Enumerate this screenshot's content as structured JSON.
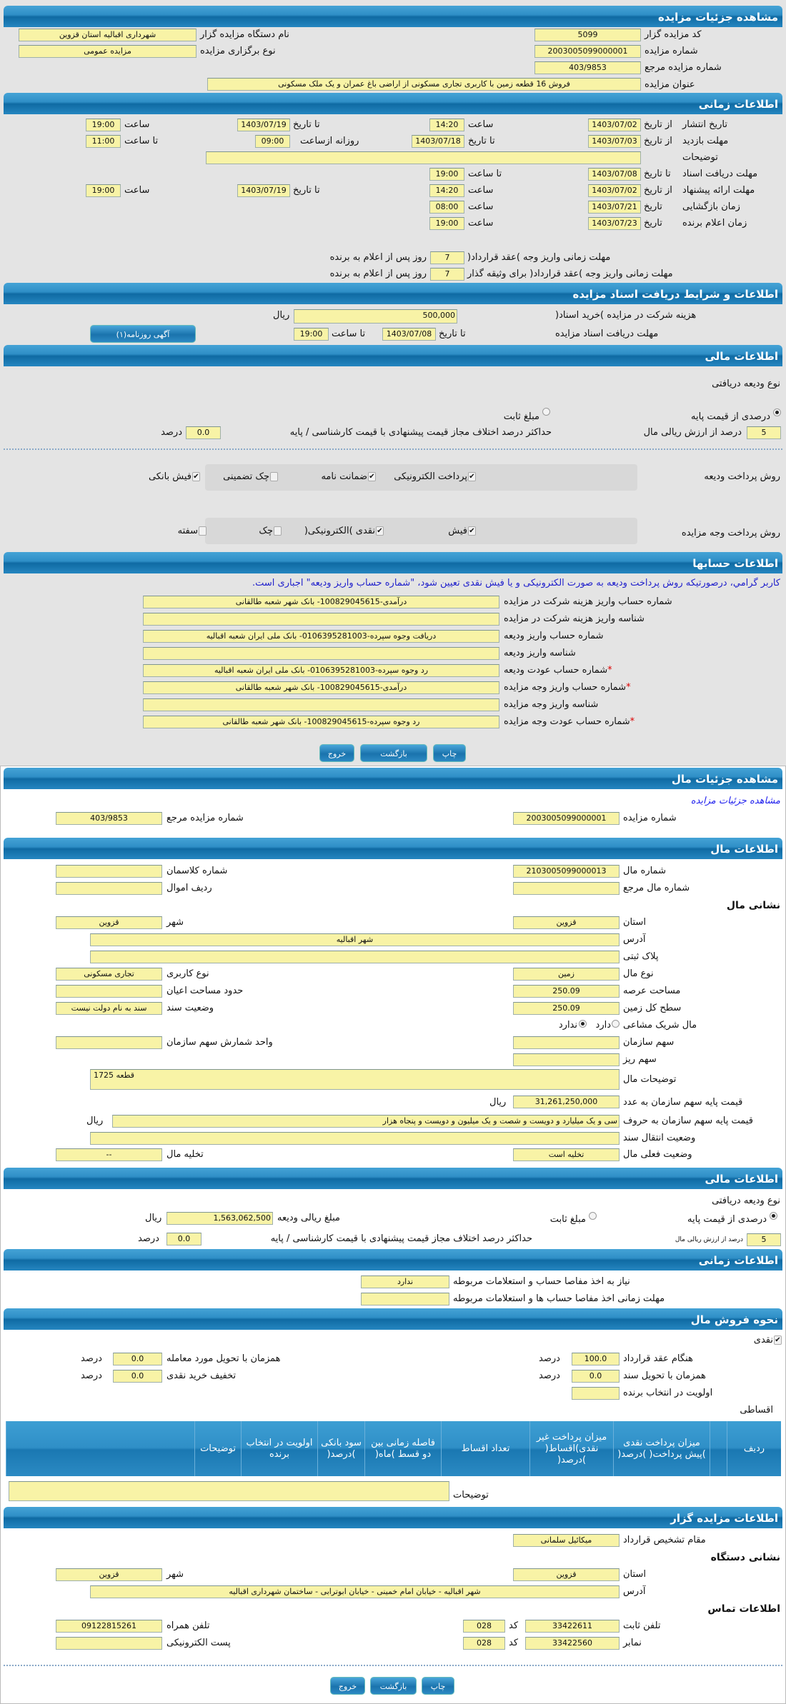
{
  "auction": {
    "title": "مشاهده جزئیات مزایده",
    "code_label": "کد مزایده گزار",
    "code": "5099",
    "org_label": "نام دستگاه مزایده گزار",
    "org": "شهرداری اقبالیه استان قزوین",
    "number_label": "شماره مزایده",
    "number": "2003005099000001",
    "type_label": "نوع برگزاری مزایده",
    "type": "مزایده عمومی",
    "ref_label": "شماره مزایده مرجع",
    "ref": "403/9853",
    "subject_label": "عنوان مزایده",
    "subject": "فروش 16 قطعه زمین با کاربری تجاری مسکونی از اراضی باغ عمران و یک ملک مسکونی"
  },
  "timing": {
    "title": "اطلاعات زمانی",
    "publish_label": "تاریخ انتشار",
    "from_date": "از تاریخ",
    "to_date": "تا تاریخ",
    "date": "تاریخ",
    "hour": "ساعت",
    "to_hour": "تا ساعت",
    "daily_from": "روزانه ازساعت",
    "publish_from": "1403/07/02",
    "publish_from_time": "14:20",
    "publish_to": "1403/07/19",
    "publish_to_time": "19:00",
    "visit_label": "مهلت بازدید",
    "visit_from": "1403/07/03",
    "visit_to": "1403/07/18",
    "visit_daily_from": "09:00",
    "visit_daily_to": "11:00",
    "desc_label": "توضیحات",
    "desc": "",
    "docs_label": "مهلت دریافت اسناد",
    "docs_to": "1403/07/08",
    "docs_to_time": "19:00",
    "offer_label": "مهلت ارائه پیشنهاد",
    "offer_from": "1403/07/02",
    "offer_from_time": "14:20",
    "offer_to": "1403/07/19",
    "offer_to_time": "19:00",
    "opening_label": "زمان بازگشایی",
    "opening_date": "1403/07/21",
    "opening_time": "08:00",
    "winner_label": "زمان اعلام برنده",
    "winner_date": "1403/07/23",
    "winner_time": "19:00",
    "pay_contract_label": "مهلت زمانی واریز وجه )عقد قرارداد(",
    "pay_contract_days": "7",
    "pay_collateral_label": "مهلت زمانی واریز وجه )عقد قرارداد( برای وثیقه گذار",
    "pay_collateral_days": "7",
    "days_suffix": "روز پس از اعلام به برنده"
  },
  "docs": {
    "title": "اطلاعات و شرایط دریافت اسناد مزایده",
    "fee_label": "هزینه شرکت در مزایده )خرید اسناد(",
    "fee": "500,000",
    "rial": "ریال",
    "deadline_label": "مهلت دریافت اسناد مزایده",
    "to_date": "تا تاریخ",
    "deadline_date": "1403/07/08",
    "to_hour": "تا ساعت",
    "deadline_time": "19:00",
    "ad_button": "آگهی روزنامه(۱)"
  },
  "finance": {
    "title": "اطلاعات مالی",
    "deposit_type_label": "نوع ودیعه دریافتی",
    "percent_option": "درصدی از قیمت پایه",
    "fixed_option": "مبلغ ثابت",
    "selected": "percent",
    "percent_value": "5",
    "percent_suffix": "درصد از ارزش ریالی مال",
    "max_diff_label": "حداکثر درصد اختلاف مجاز قیمت پیشنهادی با قیمت کارشناسی / پایه",
    "max_diff": "0.0",
    "percent_unit": "درصد",
    "deposit_methods_label": "روش پرداخت ودیعه",
    "deposit_methods": [
      {
        "label": "پرداخت الکترونیکی",
        "checked": true
      },
      {
        "label": "ضمانت نامه",
        "checked": true
      },
      {
        "label": "چک تضمینی",
        "checked": false
      },
      {
        "label": "فیش بانکی",
        "checked": true
      }
    ],
    "payment_methods_label": "روش پرداخت وجه مزایده",
    "payment_methods": [
      {
        "label": "فیش",
        "checked": true
      },
      {
        "label": "نقدی )الکترونیکی(",
        "checked": true
      },
      {
        "label": "چک",
        "checked": false
      },
      {
        "label": "سفته",
        "checked": false
      }
    ]
  },
  "accounts": {
    "title": "اطلاعات حسابها",
    "note": "کاربر گرامي، درصورتیکه روش پرداخت ودیعه به صورت الکترونیکی و یا فیش نقدی تعیین شود، \"شماره حساب واریز ودیعه\" اجباری است.",
    "rows": [
      {
        "label": "شماره حساب واریز هزینه شرکت در مزایده",
        "value": "درآمدی-100829045615- بانک شهر شعبه طالقانی"
      },
      {
        "label": "شناسه واریز هزینه شرکت در مزایده",
        "value": ""
      },
      {
        "label": "شماره حساب واریز ودیعه",
        "value": "دریافت وجوه سپرده-0106395281003- بانک ملی ایران شعبه اقبالیه"
      },
      {
        "label": "شناسه واریز ودیعه",
        "value": ""
      },
      {
        "label": "شماره حساب عودت ودیعه",
        "value": "رد وجوه سپرده-0106395281003- بانک ملی ایران شعبه اقبالیه"
      },
      {
        "label": "شماره حساب واریز وجه مزایده",
        "value": "درآمدی-100829045615- بانک شهر شعبه طالقانی"
      },
      {
        "label": "شناسه واریز وجه مزایده",
        "value": ""
      },
      {
        "label": "شماره حساب عودت وجه مزایده",
        "value": "رد وجوه سپرده-100829045615- بانک شهر شعبه طالقانی"
      }
    ],
    "required_mark": "*"
  },
  "buttons": {
    "print": "چاپ",
    "back": "بازگشت",
    "exit": "خروج"
  },
  "property_header": {
    "title": "مشاهده جزئیات مال",
    "link": "مشاهده جزئیات مزایده",
    "number_label": "شماره مزایده",
    "number": "2003005099000001",
    "ref_label": "شماره مزایده مرجع",
    "ref": "403/9853"
  },
  "property": {
    "title": "اطلاعات مال",
    "item_no_label": "شماره مال",
    "item_no": "2103005099000013",
    "class_label": "شماره کلاسمان",
    "class": "",
    "item_ref_label": "شماره مال مرجع",
    "item_ref": "",
    "asset_row_label": "ردیف اموال",
    "asset_row": "",
    "address_heading": "نشانی مال",
    "province_label": "استان",
    "province": "قزوین",
    "city_label": "شهر",
    "city": "قزوین",
    "address_label": "آدرس",
    "address": "شهر اقبالیه",
    "plate_label": "پلاک ثبتی",
    "plate": "",
    "kind_label": "نوع مال",
    "kind": "زمین",
    "usage_label": "نوع کاربری",
    "usage": "تجاری مسکونی",
    "area_label": "مساحت عرصه",
    "area": "250.09",
    "building_label": "حدود مساحت اعیان",
    "building": "",
    "total_label": "سطح کل زمین",
    "total": "250.09",
    "deed_label": "وضعیت سند",
    "deed": "سند به نام دولت نیست",
    "shared_label": "مال شریک مشاعی",
    "shared_yes": "دارد",
    "shared_no": "ندارد",
    "shared": "no",
    "share_label": "سهم سازمان",
    "share": "",
    "share_unit_label": "واحد شمارش سهم سازمان",
    "share_unit": "",
    "sub_share_label": "سهم ریز",
    "sub_share": "",
    "desc_label": "توضیحات مال",
    "desc": "قطعه 1725",
    "price_num_label": "قیمت پایه سهم سازمان به عدد",
    "price_num": "31,261,250,000",
    "price_text_label": "قیمت پایه سهم سازمان به حروف",
    "price_text": "سی و یک میلیارد و دویست و شصت و یک میلیون و دویست و پنجاه هزار",
    "rial": "ریال",
    "transfer_label": "وضعیت انتقال سند",
    "transfer": "",
    "status_label": "وضعیت فعلی مال",
    "status": "تخلیه است",
    "evict_label": "تخلیه مال",
    "evict": "--"
  },
  "property_finance": {
    "title": "اطلاعات مالی",
    "deposit_type_label": "نوع ودیعه دریافتی",
    "percent_option": "درصدی از قیمت پایه",
    "fixed_option": "مبلغ ثابت",
    "selected": "percent",
    "deposit_amount_label": "مبلغ ریالی ودیعه",
    "deposit_amount": "1,563,062,500",
    "rial": "ریال",
    "percent_value": "5",
    "percent_suffix": "درصد از ارزش ریالی مال",
    "max_diff_label": "حداکثر درصد اختلاف مجاز قیمت پیشنهادی با قیمت کارشناسی / پایه",
    "max_diff": "0.0",
    "percent_unit": "درصد"
  },
  "property_timing": {
    "title": "اطلاعات زمانی",
    "clearance_label": "نیاز به اخذ مفاصا حساب و استعلامات مربوطه",
    "clearance": "ندارد",
    "clearance_deadline_label": "مهلت زمانی اخذ مفاصا حساب ها و استعلامات مربوطه",
    "clearance_deadline": ""
  },
  "sale": {
    "title": "نحوه فروش مال",
    "cash_label": "نقدی",
    "cash_checked": true,
    "on_contract_label": "هنگام عقد قرارداد",
    "on_contract": "100.0",
    "on_delivery_label": "همزمان با تحویل مورد معامله",
    "on_delivery": "0.0",
    "on_deed_label": "همزمان با تحویل سند",
    "on_deed": "0.0",
    "cash_discount_label": "تخفیف خرید نقدی",
    "cash_discount": "0.0",
    "priority_label": "اولویت در انتخاب برنده",
    "priority": "",
    "percent_unit": "درصد",
    "installments_label": "اقساطی",
    "table_headers": [
      "ردیف",
      "",
      "میزان پرداخت نقدی )پیش پرداخت( )درصد(",
      "میزان پرداخت غیر نقدی)اقساط( )درصد(",
      "تعداد اقساط",
      "فاصله زمانی بین دو قسط )ماه(",
      "سود بانکی )درصد(",
      "اولویت در انتخاب برنده",
      "توضیحات",
      ""
    ],
    "desc_label": "توضیحات",
    "desc": ""
  },
  "auctioneer": {
    "title": "اطلاعات مزایده گزار",
    "authority_label": "مقام تشخیص قرارداد",
    "authority": "میکائیل سلمانی",
    "address_heading": "نشانی دستگاه",
    "province_label": "استان",
    "province": "قزوین",
    "city_label": "شهر",
    "city": "قزوین",
    "address_label": "آدرس",
    "address": "شهر اقبالیه - خیابان امام خمینی - خیابان ابوترابی - ساختمان شهرداری اقبالیه",
    "contact_heading": "اطلاعات تماس",
    "phone_label": "تلفن ثابت",
    "phone": "33422611",
    "code_label": "کد",
    "phone_code": "028",
    "mobile_label": "تلفن همراه",
    "mobile": "09122815261",
    "fax_label": "نمابر",
    "fax": "33422560",
    "fax_code": "028",
    "email_label": "پست الکترونیکی",
    "email": ""
  }
}
